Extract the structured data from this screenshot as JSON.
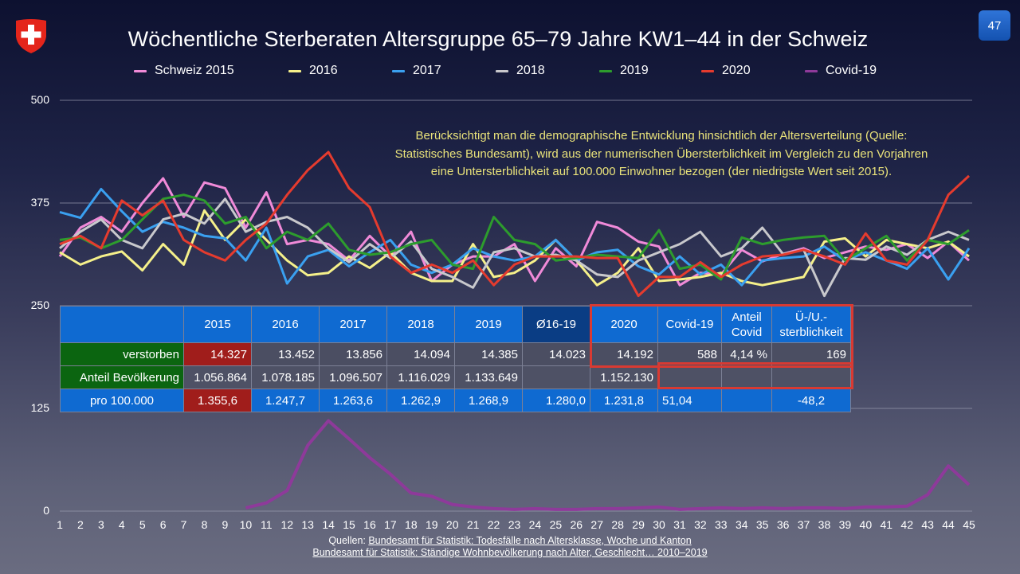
{
  "header": {
    "title": "Wöchentliche Sterberaten Altersgruppe 65–79 Jahre KW1–44 in der Schweiz",
    "page_number": "47",
    "logo_icon": "swiss-coat-of-arms-icon"
  },
  "annotation": {
    "lines": [
      "Berücksichtigt man die demographische Entwicklung hinsichtlich der Altersverteilung (Quelle:",
      "Statistisches Bundesamt), wird aus der numerischen Übersterblichkeit im Vergleich zu den Vorjahren",
      "eine Untersterblichkeit auf 100.000 Einwohner bezogen (der niedrigste Wert seit 2015)."
    ]
  },
  "table": {
    "headers": [
      "",
      "2015",
      "2016",
      "2017",
      "2018",
      "2019",
      "Ø16-19",
      "2020",
      "Covid-19",
      "Anteil Covid",
      "Ü-/U.-sterblichkeit"
    ],
    "header_lines": {
      "anteil_covid": [
        "Anteil",
        "Covid"
      ],
      "uebersterblichkeit": [
        "Ü-/U.-",
        "sterblichkeit"
      ]
    },
    "rows": [
      {
        "label": "verstorben",
        "values": [
          "14.327",
          "13.452",
          "13.856",
          "14.094",
          "14.385",
          "14.023",
          "14.192",
          "588",
          "4,14 %",
          "169"
        ]
      },
      {
        "label": "Anteil Bevölkerung",
        "values": [
          "1.056.864",
          "1.078.185",
          "1.096.507",
          "1.116.029",
          "1.133.649",
          "",
          "1.152.130",
          "",
          "",
          ""
        ]
      },
      {
        "label": "pro 100.000",
        "values": [
          "1.355,6",
          "1.247,7",
          "1.263,6",
          "1.262,9",
          "1.268,9",
          "1.280,0",
          "1.231,8",
          "51,04",
          "",
          "-48,2"
        ]
      }
    ],
    "colors": {
      "header_blue": "#0f6ad1",
      "header_dark": "#0a3d84",
      "label_green": "#0b6510",
      "highlight_red": "#a01d1b",
      "box_red": "#d93a32"
    }
  },
  "sources": {
    "prefix": "Quellen: ",
    "line1": "Bundesamt für Statistik: Todesfälle nach Altersklasse, Woche und Kanton",
    "line2": "Bundesamt für Statistik: Ständige Wohnbevölkerung nach Alter, Geschlecht… 2010–2019"
  },
  "chart_data": {
    "type": "line",
    "title": "Wöchentliche Sterberaten Altersgruppe 65–79 Jahre KW1–44 in der Schweiz",
    "xlabel": "",
    "ylabel": "",
    "ylim": [
      0,
      500
    ],
    "yticks": [
      0,
      125,
      250,
      375,
      500
    ],
    "x": [
      1,
      2,
      3,
      4,
      5,
      6,
      7,
      8,
      9,
      10,
      11,
      12,
      13,
      14,
      15,
      16,
      17,
      18,
      19,
      20,
      21,
      22,
      23,
      24,
      25,
      26,
      27,
      28,
      29,
      30,
      31,
      32,
      33,
      34,
      35,
      36,
      37,
      38,
      39,
      40,
      41,
      42,
      43,
      44,
      45
    ],
    "grid": true,
    "legend": "top",
    "series": [
      {
        "name": "Schweiz 2015",
        "color": "#f08ad8",
        "values": [
          310,
          345,
          358,
          340,
          375,
          405,
          358,
          400,
          393,
          345,
          388,
          325,
          330,
          325,
          305,
          335,
          310,
          340,
          280,
          300,
          310,
          310,
          325,
          280,
          320,
          298,
          352,
          345,
          328,
          322,
          275,
          290,
          288,
          318,
          304,
          313,
          320,
          308,
          315,
          322,
          318,
          325,
          308,
          328,
          305
        ]
      },
      {
        "name": "2016",
        "color": "#f5f08a",
        "values": [
          315,
          300,
          310,
          316,
          293,
          325,
          300,
          366,
          330,
          355,
          330,
          305,
          287,
          290,
          310,
          296,
          315,
          290,
          280,
          280,
          325,
          285,
          290,
          305,
          330,
          305,
          275,
          290,
          320,
          280,
          282,
          285,
          290,
          280,
          275,
          280,
          285,
          328,
          332,
          310,
          330,
          325,
          320,
          328,
          310
        ]
      },
      {
        "name": "2017",
        "color": "#3aa0f0",
        "values": [
          364,
          357,
          392,
          365,
          340,
          352,
          345,
          335,
          332,
          305,
          345,
          277,
          310,
          318,
          298,
          315,
          330,
          300,
          290,
          300,
          320,
          310,
          305,
          310,
          330,
          305,
          315,
          318,
          298,
          288,
          310,
          288,
          300,
          275,
          305,
          308,
          310,
          322,
          305,
          315,
          305,
          295,
          320,
          282,
          320
        ]
      },
      {
        "name": "2018",
        "color": "#c8c8cc",
        "values": [
          320,
          340,
          355,
          330,
          320,
          355,
          362,
          350,
          380,
          340,
          352,
          358,
          345,
          320,
          303,
          325,
          308,
          328,
          295,
          285,
          272,
          315,
          320,
          310,
          312,
          305,
          288,
          285,
          305,
          315,
          325,
          340,
          310,
          320,
          345,
          313,
          318,
          262,
          308,
          306,
          322,
          312,
          330,
          340,
          330
        ]
      },
      {
        "name": "2019",
        "color": "#2d9c2d",
        "values": [
          330,
          333,
          320,
          330,
          355,
          380,
          385,
          378,
          350,
          358,
          320,
          340,
          330,
          350,
          318,
          312,
          315,
          325,
          330,
          300,
          295,
          358,
          330,
          325,
          305,
          308,
          312,
          310,
          308,
          342,
          295,
          300,
          282,
          333,
          325,
          330,
          333,
          335,
          305,
          320,
          335,
          305,
          330,
          325,
          342
        ]
      },
      {
        "name": "2020",
        "color": "#e53b2e",
        "values": [
          325,
          335,
          320,
          378,
          360,
          378,
          330,
          315,
          305,
          330,
          350,
          385,
          415,
          437,
          393,
          370,
          310,
          290,
          300,
          290,
          305,
          275,
          300,
          310,
          310,
          310,
          308,
          308,
          262,
          285,
          285,
          303,
          285,
          300,
          310,
          312,
          318,
          310,
          300,
          338,
          305,
          300,
          330,
          385,
          408
        ]
      },
      {
        "name": "Covid-19",
        "color": "#8e3a9a",
        "values": [
          null,
          null,
          null,
          null,
          null,
          null,
          null,
          null,
          null,
          4,
          10,
          25,
          80,
          110,
          88,
          65,
          45,
          22,
          18,
          8,
          5,
          3,
          2,
          3,
          2,
          2,
          3,
          3,
          4,
          5,
          2,
          3,
          4,
          3,
          4,
          3,
          4,
          4,
          3,
          5,
          5,
          6,
          20,
          55,
          32
        ]
      }
    ]
  }
}
